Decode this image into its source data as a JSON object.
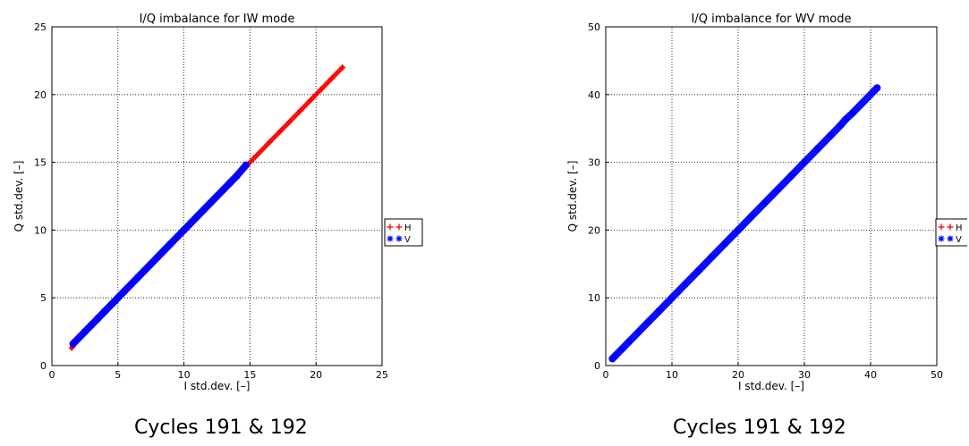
{
  "chart_data": [
    {
      "type": "scatter",
      "title": "I/Q imbalance for IW mode",
      "xlabel": "I std.dev. [–]",
      "ylabel": "Q std.dev. [–]",
      "xlim": [
        0,
        25
      ],
      "ylim": [
        0,
        25
      ],
      "xticks": [
        0,
        5,
        10,
        15,
        20,
        25
      ],
      "yticks": [
        0,
        5,
        10,
        15,
        20,
        25
      ],
      "grid": true,
      "legend_position": "right",
      "legend": [
        "H",
        "V"
      ],
      "series": [
        {
          "name": "H",
          "marker": "+",
          "color": "#ff0000",
          "x": [
            1.5,
            2.0,
            3.0,
            4.5,
            6.0,
            8.0,
            10.0,
            12.5,
            14.5,
            15.5,
            16.5,
            17.3,
            18.0,
            18.8,
            19.6,
            20.4,
            21.2,
            22.0
          ],
          "y": [
            1.3,
            2.0,
            3.0,
            4.5,
            6.0,
            8.0,
            10.0,
            12.5,
            14.5,
            15.5,
            16.5,
            17.3,
            18.0,
            18.8,
            19.6,
            20.4,
            21.2,
            22.0
          ]
        },
        {
          "name": "V",
          "marker": "*",
          "color": "#0000ff",
          "x": [
            1.6,
            2.0,
            2.5,
            3.0,
            3.5,
            4.0,
            4.5,
            5.0,
            5.5,
            6.0,
            6.5,
            7.0,
            7.5,
            8.0,
            8.5,
            9.0,
            9.5,
            10.0,
            10.5,
            11.0,
            11.5,
            12.0,
            12.5,
            13.0,
            13.5,
            14.0,
            14.7
          ],
          "y": [
            1.6,
            2.0,
            2.5,
            3.0,
            3.5,
            4.0,
            4.5,
            5.0,
            5.5,
            6.0,
            6.5,
            7.0,
            7.5,
            8.0,
            8.5,
            9.0,
            9.5,
            10.0,
            10.5,
            11.0,
            11.5,
            12.0,
            12.5,
            13.0,
            13.5,
            14.0,
            14.8
          ]
        }
      ]
    },
    {
      "type": "scatter",
      "title": "I/Q imbalance for WV mode",
      "xlabel": "I std.dev. [–]",
      "ylabel": "Q std.dev. [–]",
      "xlim": [
        0,
        50
      ],
      "ylim": [
        0,
        50
      ],
      "xticks": [
        0,
        10,
        20,
        30,
        40,
        50
      ],
      "yticks": [
        0,
        10,
        20,
        30,
        40,
        50
      ],
      "grid": true,
      "legend_position": "right",
      "legend": [
        "H",
        "V"
      ],
      "series": [
        {
          "name": "H",
          "marker": "+",
          "color": "#ff0000",
          "x": [],
          "y": []
        },
        {
          "name": "V",
          "marker": "*",
          "color": "#0000ff",
          "x": [
            1.0,
            1.5,
            2.5,
            3.5,
            5.0,
            6.5,
            8.0,
            10.0,
            12.0,
            14.0,
            16.0,
            18.0,
            20.0,
            22.0,
            24.0,
            26.0,
            28.0,
            30.0,
            32.0,
            34.0,
            35.5,
            36.2,
            37.3,
            41.0
          ],
          "y": [
            1.0,
            1.5,
            2.5,
            3.5,
            5.0,
            6.5,
            8.0,
            10.0,
            12.0,
            14.0,
            16.0,
            18.0,
            20.0,
            22.0,
            24.0,
            26.0,
            28.0,
            30.0,
            32.0,
            34.0,
            35.5,
            36.3,
            37.3,
            41.0
          ]
        }
      ]
    }
  ],
  "captions": [
    "Cycles 191 & 192",
    "Cycles 191 & 192"
  ]
}
